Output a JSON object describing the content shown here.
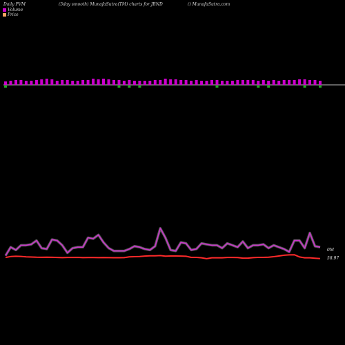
{
  "header": {
    "left": "Daily PVM",
    "middle": "(5day smooth) MunafaSutra(TM) charts for JBND",
    "right": "() MunafaSutra.com"
  },
  "legend": {
    "volume_label": "Volume",
    "price_label": "Price",
    "volume_color": "#cc00cc",
    "price_color": "#f4a460"
  },
  "chart_data": {
    "type": "bar+line",
    "n_days": 62,
    "volume_bars": {
      "baseline_color": "#ffffff",
      "up_color": "#cc00cc",
      "down_color": "#22aa22",
      "heights": [
        5,
        6,
        7,
        7,
        6,
        6,
        7,
        8,
        9,
        8,
        6,
        7,
        7,
        6,
        6,
        7,
        7,
        9,
        8,
        9,
        8,
        7,
        7,
        6,
        7,
        6,
        6,
        6,
        6,
        7,
        7,
        9,
        8,
        8,
        7,
        7,
        6,
        7,
        6,
        6,
        7,
        7,
        6,
        6,
        6,
        7,
        7,
        7,
        7,
        6,
        7,
        6,
        7,
        6,
        7,
        7,
        7,
        8,
        8,
        7,
        7,
        6
      ],
      "dir": [
        -1,
        1,
        1,
        1,
        1,
        1,
        1,
        1,
        1,
        1,
        1,
        1,
        1,
        1,
        1,
        1,
        1,
        1,
        1,
        1,
        1,
        1,
        -1,
        1,
        -1,
        1,
        -1,
        1,
        1,
        1,
        1,
        1,
        1,
        1,
        1,
        1,
        1,
        1,
        1,
        1,
        1,
        -1,
        1,
        1,
        1,
        1,
        1,
        1,
        1,
        -1,
        1,
        -1,
        1,
        1,
        1,
        1,
        1,
        1,
        -1,
        1,
        1,
        -1
      ]
    },
    "pvm_line": {
      "color": "#cc33cc",
      "end_label": "0M",
      "values": [
        4,
        13,
        10,
        15,
        15,
        16,
        20,
        12,
        11,
        21,
        20,
        15,
        7,
        12,
        13,
        13,
        23,
        22,
        26,
        18,
        12,
        9,
        9,
        9,
        11,
        14,
        13,
        11,
        10,
        14,
        33,
        23,
        10,
        9,
        18,
        17,
        10,
        11,
        17,
        16,
        15,
        15,
        12,
        17,
        15,
        13,
        19,
        12,
        15,
        15,
        16,
        12,
        15,
        13,
        11,
        8,
        20,
        20,
        12,
        28,
        14,
        13
      ]
    },
    "price_line": {
      "color": "#ff2a2a",
      "end_label": "58.97",
      "values": [
        2.4,
        3.5,
        3.8,
        3.7,
        3.1,
        2.9,
        2.7,
        2.6,
        2.7,
        2.6,
        2.4,
        2.2,
        2.4,
        2.4,
        2.5,
        2.2,
        2.3,
        2.3,
        2.2,
        2.3,
        2.2,
        2.1,
        2.1,
        2.2,
        3.1,
        3.3,
        3.5,
        4.1,
        4.4,
        4.4,
        4.7,
        3.9,
        4.2,
        4.2,
        4.1,
        3.8,
        2.5,
        2.5,
        2.0,
        0.9,
        2.0,
        2.0,
        2.0,
        2.4,
        2.4,
        2.3,
        1.6,
        1.6,
        2.2,
        2.5,
        2.5,
        2.7,
        3.3,
        4.2,
        5.1,
        5.5,
        5.7,
        3.0,
        2.0,
        2.0,
        1.5,
        1.0
      ]
    }
  }
}
